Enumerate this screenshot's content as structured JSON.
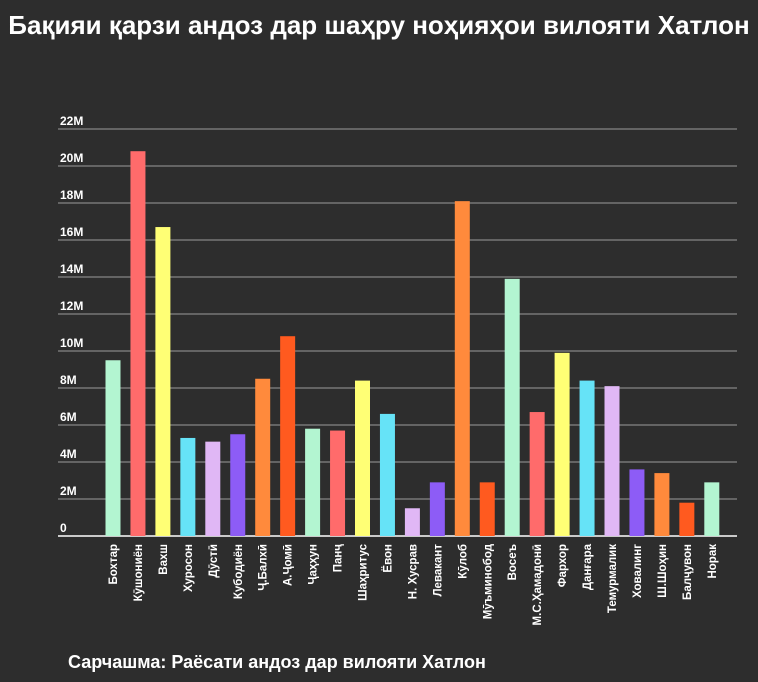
{
  "title": "Бақияи қарзи андоз дар шаҳру ноҳияҳои вилояти Хатлон",
  "source": "Сарчашма: Раёсати андоз дар вилояти Хатлон",
  "colors": {
    "background": "#2d2d2d",
    "gridline": "#9a9a9a",
    "text": "#ffffff"
  },
  "chart_data": {
    "type": "bar",
    "title": "Бақияи қарзи андоз дар шаҳру ноҳияҳои вилояти Хатлон",
    "xlabel": "",
    "ylabel": "",
    "ylim": [
      0,
      22000000
    ],
    "grid": true,
    "y_ticks": [
      {
        "value": 0,
        "label": "0"
      },
      {
        "value": 2000000,
        "label": "2M"
      },
      {
        "value": 4000000,
        "label": "4M"
      },
      {
        "value": 6000000,
        "label": "6M"
      },
      {
        "value": 8000000,
        "label": "8M"
      },
      {
        "value": 10000000,
        "label": "10M"
      },
      {
        "value": 12000000,
        "label": "12M"
      },
      {
        "value": 14000000,
        "label": "14M"
      },
      {
        "value": 16000000,
        "label": "16M"
      },
      {
        "value": 18000000,
        "label": "18M"
      },
      {
        "value": 20000000,
        "label": "20M"
      },
      {
        "value": 22000000,
        "label": "22M"
      }
    ],
    "categories": [
      "Бохтар",
      "Кӯшониён",
      "Вахш",
      "Хуросон",
      "Дӯстӣ",
      "Кубодиён",
      "Ҷ.Балхӣ",
      "А.Ҷомӣ",
      "Ҷаҳҳун",
      "Панҷ",
      "Шаҳритус",
      "Ёвон",
      "Н. Хусрав",
      "Левакант",
      "Кӯлоб",
      "Мӯъминобод",
      "Восеъ",
      "М.С.Ҳамадонӣ",
      "Фархор",
      "Данғара",
      "Темурмалик",
      "Ховалинг",
      "Ш.Шоҳин",
      "Балҷувон",
      "Норак"
    ],
    "values": [
      9500000,
      20800000,
      16700000,
      5300000,
      5100000,
      5500000,
      8500000,
      10800000,
      5800000,
      5700000,
      8400000,
      6600000,
      1500000,
      2900000,
      18100000,
      2900000,
      13900000,
      6700000,
      9900000,
      8400000,
      8100000,
      3600000,
      3400000,
      1800000,
      2900000
    ],
    "bar_colors": [
      "#b3f5d1",
      "#ff6b6b",
      "#ffff75",
      "#66e3f7",
      "#e0b7f5",
      "#8d5cf6",
      "#ff8a3c",
      "#ff5a1f",
      "#b3f5d1",
      "#ff6b6b",
      "#ffff75",
      "#66e3f7",
      "#e0b7f5",
      "#8d5cf6",
      "#ff8a3c",
      "#ff5a1f",
      "#b3f5d1",
      "#ff6b6b",
      "#ffff75",
      "#66e3f7",
      "#e0b7f5",
      "#8d5cf6",
      "#ff8a3c",
      "#ff5a1f",
      "#b3f5d1"
    ]
  }
}
